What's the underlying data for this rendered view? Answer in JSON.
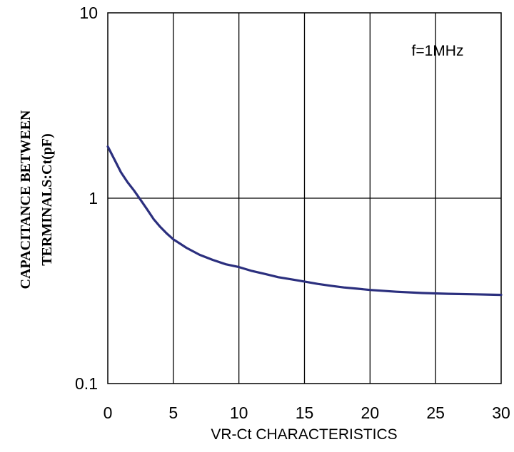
{
  "chart_data": {
    "type": "line",
    "title": "",
    "xlabel": "VR-Ct CHARACTERISTICS",
    "ylabel_lines": [
      "CAPACITANCE BETWEEN",
      "TERMINALS:Ct(pF)"
    ],
    "annotation": "f=1MHz",
    "xlim": [
      0,
      30
    ],
    "ylim": [
      0.1,
      10
    ],
    "yscale": "log",
    "x_ticks": [
      "0",
      "5",
      "10",
      "15",
      "20",
      "25",
      "30"
    ],
    "y_ticks": [
      "10",
      "1",
      "0.1"
    ],
    "grid": true,
    "series": [
      {
        "color": "#2b2f7e",
        "x": [
          0,
          0.5,
          1,
          1.5,
          2,
          2.5,
          3,
          3.5,
          4,
          4.5,
          5,
          6,
          7,
          8,
          9,
          10,
          11,
          12,
          13,
          14,
          15,
          16,
          17,
          18,
          19,
          20,
          22,
          24,
          26,
          28,
          30
        ],
        "y": [
          1.9,
          1.62,
          1.38,
          1.22,
          1.1,
          0.98,
          0.87,
          0.77,
          0.7,
          0.645,
          0.6,
          0.54,
          0.495,
          0.465,
          0.44,
          0.425,
          0.405,
          0.39,
          0.375,
          0.365,
          0.355,
          0.345,
          0.337,
          0.33,
          0.325,
          0.32,
          0.313,
          0.308,
          0.305,
          0.303,
          0.301
        ]
      }
    ]
  }
}
